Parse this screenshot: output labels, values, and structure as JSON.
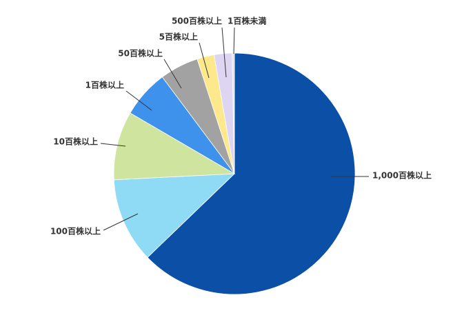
{
  "chart_data": {
    "type": "pie",
    "categories": [
      "1,000百株以上",
      "100百株以上",
      "10百株以上",
      "1百株以上",
      "50百株以上",
      "5百株以上",
      "500百株以上",
      "1百株未満"
    ],
    "values": [
      62.8,
      11.4,
      9.2,
      6.4,
      5.2,
      2.3,
      2.4,
      0.3
    ],
    "colors": [
      "#0b4fa6",
      "#8fdaf5",
      "#cfe49f",
      "#3f92ec",
      "#a2a2a2",
      "#fde88c",
      "#ddd5f2",
      "#e2e2e2"
    ]
  }
}
